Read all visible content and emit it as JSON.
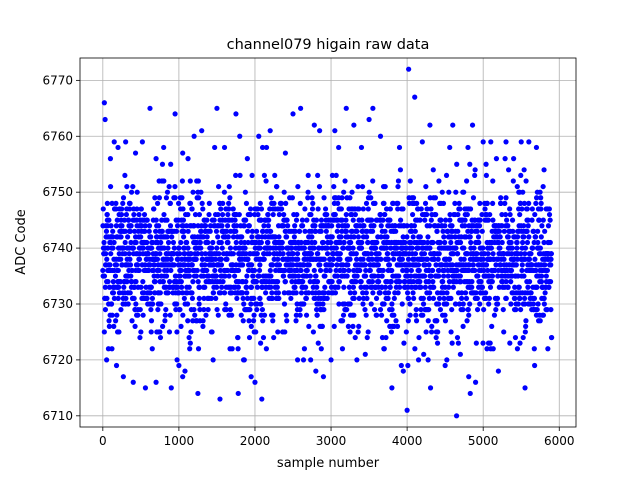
{
  "chart_data": {
    "type": "scatter",
    "title": "channel079 higain raw data",
    "xlabel": "sample number",
    "ylabel": "ADC Code",
    "xlim": [
      -300,
      6220
    ],
    "ylim": [
      6708,
      6774
    ],
    "xticks": [
      0,
      1000,
      2000,
      3000,
      4000,
      5000,
      6000
    ],
    "yticks": [
      6710,
      6720,
      6730,
      6740,
      6750,
      6760,
      6770
    ],
    "grid": true,
    "legend": "none",
    "marker_color": "#0000ff",
    "points_approx": "about 5900 samples, x from 0 to 5900, y clustered 6725–6750 around 6738",
    "series": [
      {
        "color": "#0000ff",
        "x": [
          20,
          30,
          50,
          60,
          100,
          120,
          150,
          180,
          200,
          240,
          270,
          300,
          350,
          400,
          430,
          500,
          520,
          560,
          620,
          650,
          700,
          720,
          750,
          800,
          850,
          900,
          950,
          1000,
          1050,
          1060,
          1080,
          1120,
          1150,
          1200,
          1250,
          1300,
          1400,
          1450,
          1500,
          1540,
          1600,
          1650,
          1700,
          1750,
          1780,
          1800,
          1850,
          1900,
          1950,
          2000,
          2050,
          2100,
          2150,
          2200,
          2250,
          2300,
          2400,
          2500,
          2560,
          2600,
          2650,
          2700,
          2780,
          2800,
          2850,
          2900,
          3000,
          3050,
          3100,
          3150,
          3200,
          3250,
          3300,
          3340,
          3400,
          3450,
          3500,
          3550,
          3600,
          3650,
          3700,
          3800,
          3900,
          3950,
          4000,
          4020,
          4100,
          4150,
          4200,
          4250,
          4300,
          4400,
          4500,
          4560,
          4600,
          4650,
          4700,
          4800,
          4810,
          4830,
          4860,
          4900,
          5000,
          5050,
          5100,
          5200,
          5300,
          5350,
          5400,
          5450,
          5500,
          5550,
          5600,
          5700,
          5800,
          5850,
          5900
        ],
        "y": [
          6766,
          6763,
          6720,
          6748,
          6756,
          6722,
          6759,
          6719,
          6758,
          6745,
          6717,
          6759,
          6748,
          6716,
          6757,
          6725,
          6759,
          6715,
          6765,
          6722,
          6756,
          6748,
          6725,
          6758,
          6750,
          6715,
          6764,
          6719,
          6757,
          6745,
          6718,
          6756,
          6723,
          6760,
          6714,
          6761,
          6748,
          6720,
          6765,
          6713,
          6758,
          6745,
          6722,
          6764,
          6714,
          6760,
          6720,
          6756,
          6717,
          6716,
          6760,
          6758,
          6722,
          6761,
          6748,
          6725,
          6757,
          6764,
          6720,
          6765,
          6722,
          6753,
          6762,
          6718,
          6761,
          6717,
          6720,
          6761,
          6758,
          6722,
          6765,
          6725,
          6762,
          6720,
          6758,
          6721,
          6763,
          6765,
          6728,
          6760,
          6722,
          6715,
          6758,
          6718,
          6711,
          6772,
          6767,
          6720,
          6759,
          6725,
          6762,
          6723,
          6719,
          6758,
          6762,
          6710,
          6721,
          6758,
          6717,
          6714,
          6762,
          6716,
          6759,
          6722,
          6759,
          6718,
          6759,
          6723,
          6756,
          6722,
          6759,
          6715,
          6759,
          6758,
          6754,
          6722,
          6724
        ]
      }
    ]
  }
}
